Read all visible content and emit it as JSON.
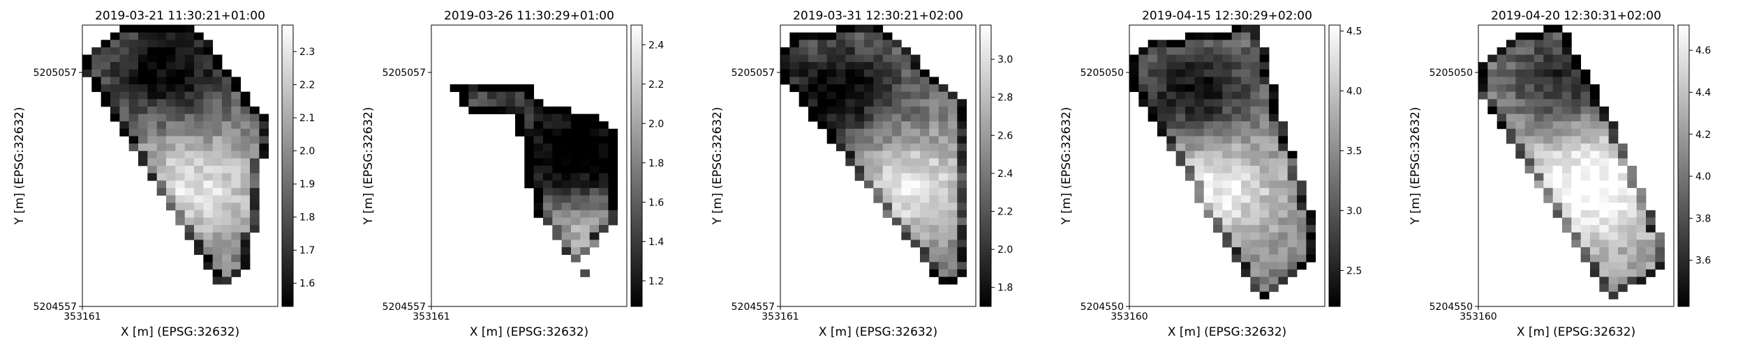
{
  "chart_data": [
    {
      "type": "heatmap",
      "title": "2019-03-21 11:30:21+01:00",
      "xlabel": "X [m] (EPSG:32632)",
      "ylabel": "Y [m] (EPSG:32632)",
      "xticks": [
        "353161"
      ],
      "yticks": [
        "5205057",
        "5204557"
      ],
      "colorbar": {
        "min": 1.53,
        "max": 2.38,
        "ticks": [
          "1.6",
          "1.7",
          "1.8",
          "1.9",
          "2.0",
          "2.1",
          "2.2",
          "2.3"
        ],
        "tick_values": [
          1.6,
          1.7,
          1.8,
          1.9,
          2.0,
          2.1,
          2.2,
          2.3
        ]
      },
      "colormap": "greys",
      "shape": {
        "rows": 38,
        "cols": 21,
        "polygon": [
          [
            1,
            3
          ],
          [
            5,
            0
          ],
          [
            12,
            0
          ],
          [
            20,
            13
          ],
          [
            18,
            33
          ],
          [
            15,
            36
          ],
          [
            0,
            6
          ]
        ],
        "dark_center": [
          9,
          6
        ],
        "bright_center": [
          12,
          22
        ],
        "mid": 0.45
      }
    },
    {
      "type": "heatmap",
      "title": "2019-03-26 11:30:29+01:00",
      "xlabel": "X [m] (EPSG:32632)",
      "ylabel": "Y [m] (EPSG:32632)",
      "xticks": [
        "353161"
      ],
      "yticks": [
        "5205057",
        "5204557"
      ],
      "colorbar": {
        "min": 1.07,
        "max": 2.5,
        "ticks": [
          "1.2",
          "1.4",
          "1.6",
          "1.8",
          "2.0",
          "2.2",
          "2.4"
        ],
        "tick_values": [
          1.2,
          1.4,
          1.6,
          1.8,
          2.0,
          2.2,
          2.4
        ]
      },
      "colormap": "greys",
      "shape": {
        "rows": 38,
        "cols": 21,
        "polygon": [
          [
            2,
            8
          ],
          [
            5,
            8
          ],
          [
            11,
            8
          ],
          [
            12,
            11
          ],
          [
            18,
            12
          ],
          [
            20,
            15
          ],
          [
            20,
            26
          ],
          [
            16,
            32
          ],
          [
            18,
            36
          ],
          [
            11,
            25
          ],
          [
            9,
            12
          ],
          [
            4,
            12
          ]
        ],
        "dark_center": [
          16,
          18
        ],
        "bright_center": [
          17,
          29
        ],
        "mid": 0.3
      }
    },
    {
      "type": "heatmap",
      "title": "2019-03-31 12:30:21+02:00",
      "xlabel": "X [m] (EPSG:32632)",
      "ylabel": "Y [m] (EPSG:32632)",
      "xticks": [
        "353161"
      ],
      "yticks": [
        "5205057",
        "5204557"
      ],
      "colorbar": {
        "min": 1.7,
        "max": 3.18,
        "ticks": [
          "1.8",
          "2.0",
          "2.2",
          "2.4",
          "2.6",
          "2.8",
          "3.0"
        ],
        "tick_values": [
          1.8,
          2.0,
          2.2,
          2.4,
          2.6,
          2.8,
          3.0
        ]
      },
      "colormap": "greys",
      "shape": {
        "rows": 38,
        "cols": 21,
        "polygon": [
          [
            0,
            5
          ],
          [
            1,
            1
          ],
          [
            11,
            0
          ],
          [
            20,
            11
          ],
          [
            20,
            33
          ],
          [
            18,
            36
          ],
          [
            0,
            7
          ]
        ],
        "dark_center": [
          6,
          9
        ],
        "bright_center": [
          14,
          22
        ],
        "mid": 0.45
      }
    },
    {
      "type": "heatmap",
      "title": "2019-04-15 12:30:29+02:00",
      "xlabel": "X [m] (EPSG:32632)",
      "ylabel": "Y [m] (EPSG:32632)",
      "xticks": [
        "353160"
      ],
      "yticks": [
        "5205050",
        "5204550"
      ],
      "colorbar": {
        "min": 2.2,
        "max": 4.55,
        "ticks": [
          "2.5",
          "3.0",
          "3.5",
          "4.0",
          "4.5"
        ],
        "tick_values": [
          2.5,
          3.0,
          3.5,
          4.0,
          4.5
        ]
      },
      "colormap": "greys",
      "shape": {
        "rows": 38,
        "cols": 21,
        "polygon": [
          [
            0,
            5
          ],
          [
            3,
            2
          ],
          [
            14,
            0
          ],
          [
            16,
            11
          ],
          [
            20,
            27
          ],
          [
            20,
            32
          ],
          [
            14,
            37
          ],
          [
            0,
            8
          ]
        ],
        "dark_center": [
          7,
          9
        ],
        "bright_center": [
          9,
          22
        ],
        "mid": 0.5
      }
    },
    {
      "type": "heatmap",
      "title": "2019-04-20 12:30:31+02:00",
      "xlabel": "X [m] (EPSG:32632)",
      "ylabel": "Y [m] (EPSG:32632)",
      "xticks": [
        "353160"
      ],
      "yticks": [
        "5205050",
        "5204550"
      ],
      "colorbar": {
        "min": 3.38,
        "max": 4.72,
        "ticks": [
          "3.6",
          "3.8",
          "4.0",
          "4.2",
          "4.4",
          "4.6"
        ],
        "tick_values": [
          3.6,
          3.8,
          4.0,
          4.2,
          4.4,
          4.6
        ]
      },
      "colormap": "greys",
      "shape": {
        "rows": 38,
        "cols": 21,
        "polygon": [
          [
            0,
            6
          ],
          [
            5,
            1
          ],
          [
            9,
            0
          ],
          [
            14,
            12
          ],
          [
            20,
            29
          ],
          [
            20,
            33
          ],
          [
            14,
            37
          ],
          [
            0,
            9
          ]
        ],
        "dark_center": [
          9,
          7
        ],
        "bright_center": [
          12,
          22
        ],
        "mid": 0.6
      }
    }
  ]
}
